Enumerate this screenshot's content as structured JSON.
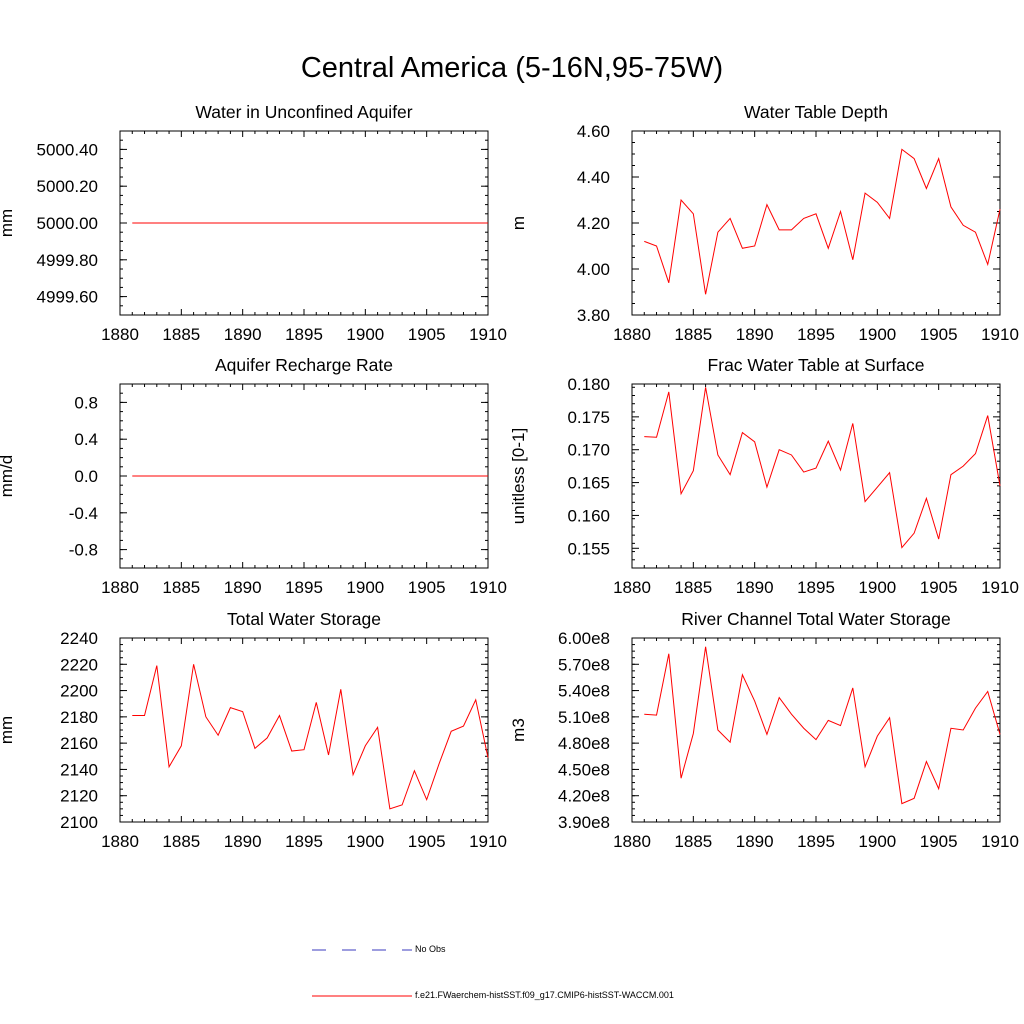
{
  "title": "Central America (5-16N,95-75W)",
  "legend": {
    "obs_label": "No Obs",
    "model_label": "f.e21.FWaerchem-histSST.f09_g17.CMIP6-histSST-WACCM.001",
    "obs_color": "#3b3bbf",
    "model_color": "#ff0000"
  },
  "chart_data": [
    {
      "type": "line",
      "title": "Water in Unconfined Aquifer",
      "xlabel": "",
      "ylabel": "mm",
      "xlim": [
        1880,
        1910
      ],
      "ylim": [
        4999.5,
        5000.5
      ],
      "xticks": [
        1880,
        1885,
        1890,
        1895,
        1900,
        1905,
        1910
      ],
      "yticks": [
        4999.6,
        4999.8,
        5000.0,
        5000.2,
        5000.4
      ],
      "ytick_labels": [
        "4999.60",
        "4999.80",
        "5000.00",
        "5000.20",
        "5000.40"
      ],
      "x": [
        1881,
        1910
      ],
      "series": [
        {
          "values": [
            5000.0,
            5000.0
          ],
          "color": "#ff0000"
        }
      ]
    },
    {
      "type": "line",
      "title": "Water Table Depth",
      "xlabel": "",
      "ylabel": "m",
      "xlim": [
        1880,
        1910
      ],
      "ylim": [
        3.8,
        4.6
      ],
      "xticks": [
        1880,
        1885,
        1890,
        1895,
        1900,
        1905,
        1910
      ],
      "yticks": [
        3.8,
        4.0,
        4.2,
        4.4,
        4.6
      ],
      "ytick_labels": [
        "3.80",
        "4.00",
        "4.20",
        "4.40",
        "4.60"
      ],
      "x": [
        1881,
        1882,
        1883,
        1884,
        1885,
        1886,
        1887,
        1888,
        1889,
        1890,
        1891,
        1892,
        1893,
        1894,
        1895,
        1896,
        1897,
        1898,
        1899,
        1900,
        1901,
        1902,
        1903,
        1904,
        1905,
        1906,
        1907,
        1908,
        1909,
        1910
      ],
      "series": [
        {
          "values": [
            4.12,
            4.1,
            3.94,
            4.3,
            4.24,
            3.89,
            4.16,
            4.22,
            4.09,
            4.1,
            4.28,
            4.17,
            4.17,
            4.22,
            4.24,
            4.09,
            4.25,
            4.04,
            4.33,
            4.29,
            4.22,
            4.52,
            4.48,
            4.35,
            4.48,
            4.27,
            4.19,
            4.16,
            4.02,
            4.26
          ],
          "color": "#ff0000"
        }
      ]
    },
    {
      "type": "line",
      "title": "Aquifer Recharge Rate",
      "xlabel": "",
      "ylabel": "mm/d",
      "xlim": [
        1880,
        1910
      ],
      "ylim": [
        -1.0,
        1.0
      ],
      "xticks": [
        1880,
        1885,
        1890,
        1895,
        1900,
        1905,
        1910
      ],
      "yticks": [
        -0.8,
        -0.4,
        0.0,
        0.4,
        0.8
      ],
      "ytick_labels": [
        "-0.8",
        "-0.4",
        "0.0",
        "0.4",
        "0.8"
      ],
      "x": [
        1881,
        1910
      ],
      "series": [
        {
          "values": [
            0.0,
            0.0
          ],
          "color": "#ff0000"
        }
      ]
    },
    {
      "type": "line",
      "title": "Frac Water Table at Surface",
      "xlabel": "",
      "ylabel": "unitless [0-1]",
      "xlim": [
        1880,
        1910
      ],
      "ylim": [
        0.152,
        0.18
      ],
      "xticks": [
        1880,
        1885,
        1890,
        1895,
        1900,
        1905,
        1910
      ],
      "yticks": [
        0.155,
        0.16,
        0.165,
        0.17,
        0.175,
        0.18
      ],
      "ytick_labels": [
        "0.155",
        "0.160",
        "0.165",
        "0.170",
        "0.175",
        "0.180"
      ],
      "x": [
        1881,
        1882,
        1883,
        1884,
        1885,
        1886,
        1887,
        1888,
        1889,
        1890,
        1891,
        1892,
        1893,
        1894,
        1895,
        1896,
        1897,
        1898,
        1899,
        1900,
        1901,
        1902,
        1903,
        1904,
        1905,
        1906,
        1907,
        1908,
        1909,
        1910
      ],
      "series": [
        {
          "values": [
            0.172,
            0.1719,
            0.1788,
            0.1633,
            0.1668,
            0.1795,
            0.1692,
            0.1662,
            0.1726,
            0.1712,
            0.1643,
            0.17,
            0.1692,
            0.1666,
            0.1672,
            0.1713,
            0.1669,
            0.174,
            0.1621,
            0.1643,
            0.1665,
            0.1551,
            0.1573,
            0.1626,
            0.1564,
            0.1662,
            0.1675,
            0.1694,
            0.1752,
            0.1645
          ],
          "color": "#ff0000"
        }
      ]
    },
    {
      "type": "line",
      "title": "Total Water Storage",
      "xlabel": "",
      "ylabel": "mm",
      "xlim": [
        1880,
        1910
      ],
      "ylim": [
        2100,
        2240
      ],
      "xticks": [
        1880,
        1885,
        1890,
        1895,
        1900,
        1905,
        1910
      ],
      "yticks": [
        2100,
        2120,
        2140,
        2160,
        2180,
        2200,
        2220,
        2240
      ],
      "ytick_labels": [
        "2100",
        "2120",
        "2140",
        "2160",
        "2180",
        "2200",
        "2220",
        "2240"
      ],
      "x": [
        1881,
        1882,
        1883,
        1884,
        1885,
        1886,
        1887,
        1888,
        1889,
        1890,
        1891,
        1892,
        1893,
        1894,
        1895,
        1896,
        1897,
        1898,
        1899,
        1900,
        1901,
        1902,
        1903,
        1904,
        1905,
        1906,
        1907,
        1908,
        1909,
        1910
      ],
      "series": [
        {
          "values": [
            2181,
            2181,
            2219,
            2142,
            2158,
            2220,
            2180,
            2166,
            2187,
            2184,
            2156,
            2164,
            2181,
            2154,
            2155,
            2191,
            2151,
            2201,
            2136,
            2158,
            2172,
            2110,
            2113,
            2139,
            2117,
            2144,
            2169,
            2173,
            2193,
            2149
          ],
          "color": "#ff0000"
        }
      ]
    },
    {
      "type": "line",
      "title": "River Channel Total Water Storage",
      "xlabel": "",
      "ylabel": "m3",
      "xlim": [
        1880,
        1910
      ],
      "ylim": [
        390000000.0,
        600000000.0
      ],
      "xticks": [
        1880,
        1885,
        1890,
        1895,
        1900,
        1905,
        1910
      ],
      "yticks": [
        390000000.0,
        420000000.0,
        450000000.0,
        480000000.0,
        510000000.0,
        540000000.0,
        570000000.0,
        600000000.0
      ],
      "ytick_labels": [
        "3.90e8",
        "4.20e8",
        "4.50e8",
        "4.80e8",
        "5.10e8",
        "5.40e8",
        "5.70e8",
        "6.00e8"
      ],
      "x": [
        1881,
        1882,
        1883,
        1884,
        1885,
        1886,
        1887,
        1888,
        1889,
        1890,
        1891,
        1892,
        1893,
        1894,
        1895,
        1896,
        1897,
        1898,
        1899,
        1900,
        1901,
        1902,
        1903,
        1904,
        1905,
        1906,
        1907,
        1908,
        1909,
        1910
      ],
      "series": [
        {
          "values": [
            513000000.0,
            512000000.0,
            582000000.0,
            440000000.0,
            491000000.0,
            590000000.0,
            495000000.0,
            481000000.0,
            558000000.0,
            528000000.0,
            490000000.0,
            532000000.0,
            513000000.0,
            497000000.0,
            484000000.0,
            506000000.0,
            500000000.0,
            543000000.0,
            453000000.0,
            488000000.0,
            509000000.0,
            411000000.0,
            417000000.0,
            459000000.0,
            428000000.0,
            497000000.0,
            495000000.0,
            520000000.0,
            539000000.0,
            490000000.0
          ],
          "color": "#ff0000"
        }
      ]
    }
  ]
}
